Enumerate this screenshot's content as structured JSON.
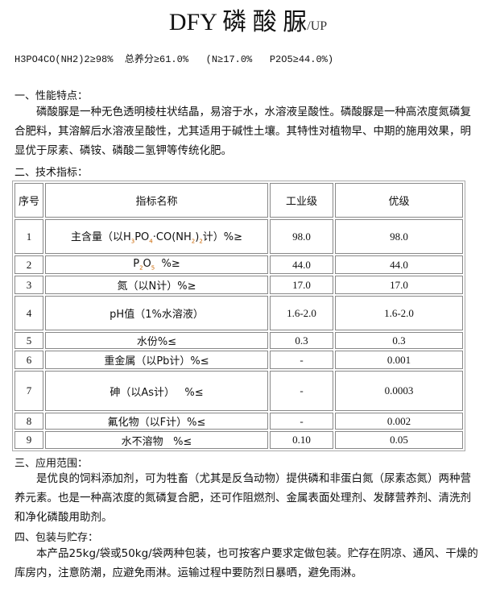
{
  "title": {
    "main": "DFY 磷 酸 脲",
    "suffix": "/UP"
  },
  "formula": "H3PO4CO(NH2)2≥98%  总养分≥61.0%   (N≥17.0%   P2O5≥44.0%)",
  "sections": [
    {
      "heading": "一、性能特点：",
      "text": "磷酸脲是一种无色透明棱柱状结晶，易溶于水，水溶液呈酸性。磷酸脲是一种高浓度氮磷复合肥料，其溶解后水溶液呈酸性，尤其适用于碱性土壤。其特性对植物早、中期的施用效果，明显优于尿素、磷铵、磷酸二氢钾等传统化肥。"
    },
    {
      "heading": "二、技术指标："
    },
    {
      "heading": "三、应用范围：",
      "text": "是优良的饲料添加剂，可为牲畜（尤其是反刍动物）提供磷和非蛋白氮（尿素态氮）两种营养元素。也是一种高浓度的氮磷复合肥，还可作阻燃剂、金属表面处理剂、发酵营养剂、清洗剂和净化磷酸用助剂。"
    },
    {
      "heading": "四、包装与贮存：",
      "text": "本产品25kg/袋或50kg/袋两种包装，也可按客户要求定做包装。贮存在阴凉、通风、干燥的库房内，注意防潮，应避免雨淋。运输过程中要防烈日暴晒，避免雨淋。"
    }
  ],
  "table": {
    "headers": [
      "序号",
      "指标名称",
      "工业级",
      "优级"
    ],
    "rows": [
      {
        "no": "1",
        "name": [
          [
            "主含量（以H",
            ""
          ],
          [
            "3",
            "sub"
          ],
          [
            "PO",
            ""
          ],
          [
            "4",
            "sub"
          ],
          [
            "·CO(NH",
            ""
          ],
          [
            "2",
            "sub"
          ],
          [
            ")",
            ""
          ],
          [
            "2",
            "sub"
          ],
          [
            "计）%≥",
            ""
          ]
        ],
        "industrial": "98.0",
        "premium": "98.0"
      },
      {
        "no": "2",
        "name": [
          [
            "P",
            ""
          ],
          [
            "2",
            "sub"
          ],
          [
            "O",
            ""
          ],
          [
            "5",
            "sub"
          ],
          [
            "  %≥",
            ""
          ]
        ],
        "industrial": "44.0",
        "premium": "44.0"
      },
      {
        "no": "3",
        "name": [
          [
            "氮（以N计）%≥",
            ""
          ]
        ],
        "industrial": "17.0",
        "premium": "17.0"
      },
      {
        "no": "4",
        "name": [
          [
            "pH值（1%水溶液）",
            ""
          ]
        ],
        "industrial": "1.6-2.0",
        "premium": "1.6-2.0"
      },
      {
        "no": "5",
        "name": [
          [
            "水份%≤",
            ""
          ]
        ],
        "industrial": "0.3",
        "premium": "0.3"
      },
      {
        "no": "6",
        "name": [
          [
            "重金属（以Pb计）%≤",
            ""
          ]
        ],
        "industrial": "-",
        "premium": "0.001"
      },
      {
        "no": "7",
        "name": [
          [
            "砷（以As计）   %≤",
            ""
          ]
        ],
        "industrial": "-",
        "premium": "0.0003"
      },
      {
        "no": "8",
        "name": [
          [
            "氟化物（以F计）%≤",
            ""
          ]
        ],
        "industrial": "-",
        "premium": "0.002"
      },
      {
        "no": "9",
        "name": [
          [
            "水不溶物   %≤",
            ""
          ]
        ],
        "industrial": "0.10",
        "premium": "0.05"
      }
    ]
  }
}
